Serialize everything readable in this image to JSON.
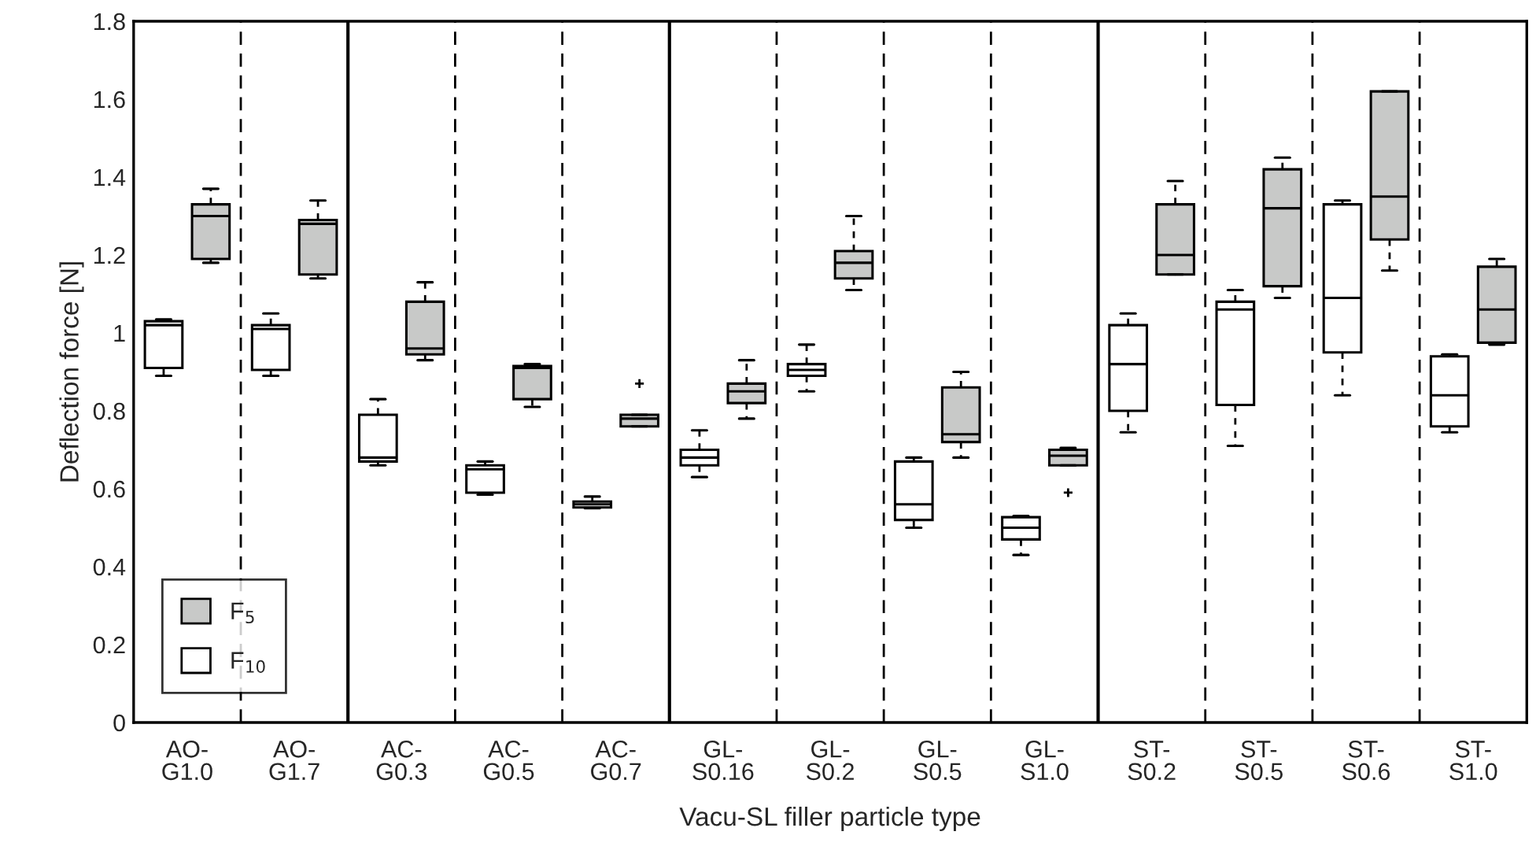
{
  "chart_data": {
    "type": "box",
    "xlabel": "Vacu-SL filler particle type",
    "ylabel": "Deflection force [N]",
    "categories": [
      "AO-G1.0",
      "AO-G1.7",
      "AC-G0.3",
      "AC-G0.5",
      "AC-G0.7",
      "GL-S0.16",
      "GL-S0.2",
      "GL-S0.5",
      "GL-S1.0",
      "ST-S0.2",
      "ST-S0.5",
      "ST-S0.6",
      "ST-S1.0"
    ],
    "ylim": [
      0,
      1.8
    ],
    "yticks": [
      0,
      0.2,
      0.4,
      0.6,
      0.8,
      1,
      1.2,
      1.4,
      1.6,
      1.8
    ],
    "grid": false,
    "legend": "bottom left",
    "series": [
      {
        "name": "F$_{5}$",
        "color": "#c8c9c8",
        "boxes": [
          {
            "low": 1.18,
            "q1": 1.19,
            "median": 1.3,
            "q3": 1.33,
            "high": 1.37
          },
          {
            "low": 1.14,
            "q1": 1.15,
            "median": 1.28,
            "q3": 1.29,
            "high": 1.34
          },
          {
            "low": 0.93,
            "q1": 0.945,
            "median": 0.96,
            "q3": 1.08,
            "high": 1.13
          },
          {
            "low": 0.81,
            "q1": 0.83,
            "median": 0.91,
            "q3": 0.915,
            "high": 0.92
          },
          {
            "low": 0.76,
            "q1": 0.76,
            "median": 0.78,
            "q3": 0.79,
            "high": 0.79,
            "outliers": [
              0.87
            ]
          },
          {
            "low": 0.78,
            "q1": 0.82,
            "median": 0.85,
            "q3": 0.87,
            "high": 0.93
          },
          {
            "low": 1.11,
            "q1": 1.14,
            "median": 1.18,
            "q3": 1.21,
            "high": 1.3
          },
          {
            "low": 0.68,
            "q1": 0.72,
            "median": 0.74,
            "q3": 0.86,
            "high": 0.9
          },
          {
            "low": 0.66,
            "q1": 0.66,
            "median": 0.685,
            "q3": 0.7,
            "high": 0.705,
            "outliers": [
              0.59
            ]
          },
          {
            "low": 1.15,
            "q1": 1.15,
            "median": 1.2,
            "q3": 1.33,
            "high": 1.39
          },
          {
            "low": 1.09,
            "q1": 1.12,
            "median": 1.32,
            "q3": 1.42,
            "high": 1.45
          },
          {
            "low": 1.16,
            "q1": 1.24,
            "median": 1.35,
            "q3": 1.62,
            "high": 1.62
          },
          {
            "low": 0.97,
            "q1": 0.975,
            "median": 1.06,
            "q3": 1.17,
            "high": 1.19
          }
        ]
      },
      {
        "name": "F$_{10}$",
        "color": "#ffffff",
        "boxes": [
          {
            "low": 0.89,
            "q1": 0.91,
            "median": 1.02,
            "q3": 1.03,
            "high": 1.035
          },
          {
            "low": 0.89,
            "q1": 0.905,
            "median": 1.01,
            "q3": 1.02,
            "high": 1.05
          },
          {
            "low": 0.66,
            "q1": 0.67,
            "median": 0.68,
            "q3": 0.79,
            "high": 0.83
          },
          {
            "low": 0.585,
            "q1": 0.59,
            "median": 0.65,
            "q3": 0.66,
            "high": 0.67
          },
          {
            "low": 0.55,
            "q1": 0.552,
            "median": 0.56,
            "q3": 0.567,
            "high": 0.58
          },
          {
            "low": 0.63,
            "q1": 0.66,
            "median": 0.68,
            "q3": 0.7,
            "high": 0.75
          },
          {
            "low": 0.85,
            "q1": 0.89,
            "median": 0.905,
            "q3": 0.92,
            "high": 0.97
          },
          {
            "low": 0.5,
            "q1": 0.52,
            "median": 0.56,
            "q3": 0.67,
            "high": 0.68
          },
          {
            "low": 0.43,
            "q1": 0.47,
            "median": 0.5,
            "q3": 0.527,
            "high": 0.53
          },
          {
            "low": 0.745,
            "q1": 0.8,
            "median": 0.92,
            "q3": 1.02,
            "high": 1.05
          },
          {
            "low": 0.71,
            "q1": 0.815,
            "median": 1.06,
            "q3": 1.08,
            "high": 1.11
          },
          {
            "low": 0.84,
            "q1": 0.95,
            "median": 1.09,
            "q3": 1.33,
            "high": 1.34
          },
          {
            "low": 0.745,
            "q1": 0.76,
            "median": 0.84,
            "q3": 0.94,
            "high": 0.945
          }
        ]
      }
    ]
  }
}
